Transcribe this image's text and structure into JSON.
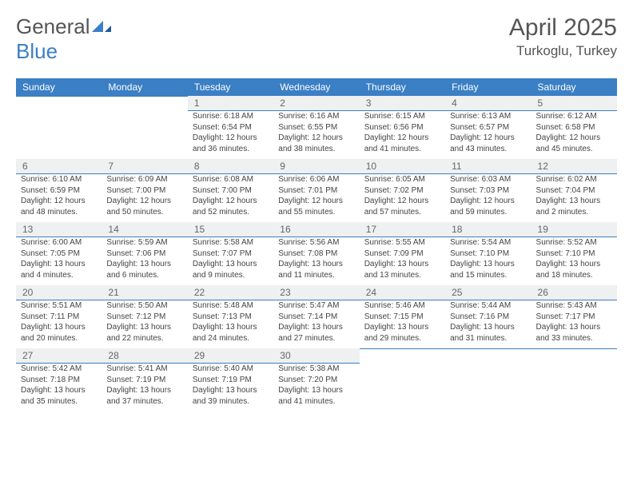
{
  "brand": {
    "part1": "General",
    "part2": "Blue"
  },
  "title": "April 2025",
  "location": "Turkoglu, Turkey",
  "colors": {
    "header_bg": "#3b7fc4",
    "header_text": "#ffffff",
    "daynum_bg": "#eef0f2",
    "border": "#3b7fc4",
    "text": "#444444",
    "page_bg": "#ffffff"
  },
  "days_of_week": [
    "Sunday",
    "Monday",
    "Tuesday",
    "Wednesday",
    "Thursday",
    "Friday",
    "Saturday"
  ],
  "weeks": [
    [
      null,
      null,
      {
        "n": "1",
        "sr": "6:18 AM",
        "ss": "6:54 PM",
        "dl": "12 hours and 36 minutes."
      },
      {
        "n": "2",
        "sr": "6:16 AM",
        "ss": "6:55 PM",
        "dl": "12 hours and 38 minutes."
      },
      {
        "n": "3",
        "sr": "6:15 AM",
        "ss": "6:56 PM",
        "dl": "12 hours and 41 minutes."
      },
      {
        "n": "4",
        "sr": "6:13 AM",
        "ss": "6:57 PM",
        "dl": "12 hours and 43 minutes."
      },
      {
        "n": "5",
        "sr": "6:12 AM",
        "ss": "6:58 PM",
        "dl": "12 hours and 45 minutes."
      }
    ],
    [
      {
        "n": "6",
        "sr": "6:10 AM",
        "ss": "6:59 PM",
        "dl": "12 hours and 48 minutes."
      },
      {
        "n": "7",
        "sr": "6:09 AM",
        "ss": "7:00 PM",
        "dl": "12 hours and 50 minutes."
      },
      {
        "n": "8",
        "sr": "6:08 AM",
        "ss": "7:00 PM",
        "dl": "12 hours and 52 minutes."
      },
      {
        "n": "9",
        "sr": "6:06 AM",
        "ss": "7:01 PM",
        "dl": "12 hours and 55 minutes."
      },
      {
        "n": "10",
        "sr": "6:05 AM",
        "ss": "7:02 PM",
        "dl": "12 hours and 57 minutes."
      },
      {
        "n": "11",
        "sr": "6:03 AM",
        "ss": "7:03 PM",
        "dl": "12 hours and 59 minutes."
      },
      {
        "n": "12",
        "sr": "6:02 AM",
        "ss": "7:04 PM",
        "dl": "13 hours and 2 minutes."
      }
    ],
    [
      {
        "n": "13",
        "sr": "6:00 AM",
        "ss": "7:05 PM",
        "dl": "13 hours and 4 minutes."
      },
      {
        "n": "14",
        "sr": "5:59 AM",
        "ss": "7:06 PM",
        "dl": "13 hours and 6 minutes."
      },
      {
        "n": "15",
        "sr": "5:58 AM",
        "ss": "7:07 PM",
        "dl": "13 hours and 9 minutes."
      },
      {
        "n": "16",
        "sr": "5:56 AM",
        "ss": "7:08 PM",
        "dl": "13 hours and 11 minutes."
      },
      {
        "n": "17",
        "sr": "5:55 AM",
        "ss": "7:09 PM",
        "dl": "13 hours and 13 minutes."
      },
      {
        "n": "18",
        "sr": "5:54 AM",
        "ss": "7:10 PM",
        "dl": "13 hours and 15 minutes."
      },
      {
        "n": "19",
        "sr": "5:52 AM",
        "ss": "7:10 PM",
        "dl": "13 hours and 18 minutes."
      }
    ],
    [
      {
        "n": "20",
        "sr": "5:51 AM",
        "ss": "7:11 PM",
        "dl": "13 hours and 20 minutes."
      },
      {
        "n": "21",
        "sr": "5:50 AM",
        "ss": "7:12 PM",
        "dl": "13 hours and 22 minutes."
      },
      {
        "n": "22",
        "sr": "5:48 AM",
        "ss": "7:13 PM",
        "dl": "13 hours and 24 minutes."
      },
      {
        "n": "23",
        "sr": "5:47 AM",
        "ss": "7:14 PM",
        "dl": "13 hours and 27 minutes."
      },
      {
        "n": "24",
        "sr": "5:46 AM",
        "ss": "7:15 PM",
        "dl": "13 hours and 29 minutes."
      },
      {
        "n": "25",
        "sr": "5:44 AM",
        "ss": "7:16 PM",
        "dl": "13 hours and 31 minutes."
      },
      {
        "n": "26",
        "sr": "5:43 AM",
        "ss": "7:17 PM",
        "dl": "13 hours and 33 minutes."
      }
    ],
    [
      {
        "n": "27",
        "sr": "5:42 AM",
        "ss": "7:18 PM",
        "dl": "13 hours and 35 minutes."
      },
      {
        "n": "28",
        "sr": "5:41 AM",
        "ss": "7:19 PM",
        "dl": "13 hours and 37 minutes."
      },
      {
        "n": "29",
        "sr": "5:40 AM",
        "ss": "7:19 PM",
        "dl": "13 hours and 39 minutes."
      },
      {
        "n": "30",
        "sr": "5:38 AM",
        "ss": "7:20 PM",
        "dl": "13 hours and 41 minutes."
      },
      null,
      null,
      null
    ]
  ],
  "labels": {
    "sunrise": "Sunrise:",
    "sunset": "Sunset:",
    "daylight": "Daylight:"
  }
}
